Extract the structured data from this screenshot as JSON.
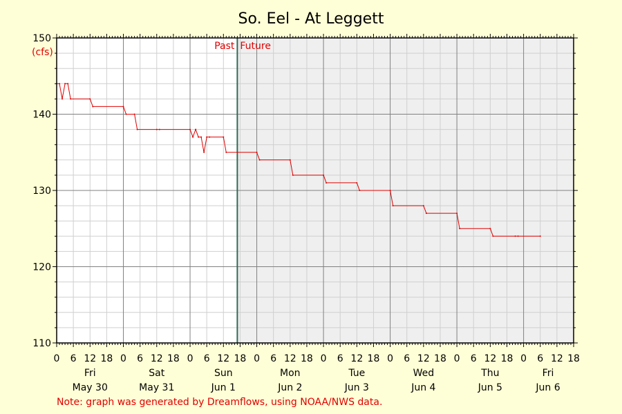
{
  "chart_data": {
    "type": "line",
    "title": "So. Eel - At Leggett",
    "ylabel": "(cfs)",
    "ylim": [
      110,
      150
    ],
    "y_ticks": [
      110,
      120,
      130,
      140,
      150
    ],
    "x_hour_tick_labels": [
      "0",
      "6",
      "12",
      "18",
      "0",
      "6",
      "12",
      "18",
      "0",
      "6",
      "12",
      "18",
      "0",
      "6",
      "12",
      "18",
      "0",
      "6",
      "12",
      "18",
      "0",
      "6",
      "12",
      "18",
      "0",
      "6",
      "12",
      "18",
      "0",
      "6",
      "12",
      "18"
    ],
    "days": [
      {
        "day": "Fri",
        "date": "May 30"
      },
      {
        "day": "Sat",
        "date": "May 31"
      },
      {
        "day": "Sun",
        "date": "Jun 1"
      },
      {
        "day": "Mon",
        "date": "Jun 2"
      },
      {
        "day": "Tue",
        "date": "Jun 3"
      },
      {
        "day": "Wed",
        "date": "Jun 4"
      },
      {
        "day": "Thu",
        "date": "Jun 5"
      },
      {
        "day": "Fri",
        "date": "Jun 6"
      }
    ],
    "xlim_hours": [
      0,
      186
    ],
    "now_hour": 65,
    "past_label": "Past",
    "future_label": "Future",
    "grid": true,
    "colors": {
      "background": "#ffffd7",
      "future_fill": "#efefef",
      "line": "#e00000",
      "now_line": "#2e6b55",
      "major_grid": "#808080",
      "minor_grid": "#cfcfcf",
      "label_red": "#e00000"
    },
    "series": [
      {
        "x": [
          0,
          1,
          2,
          3,
          4,
          5,
          12,
          13,
          24,
          25,
          28,
          29,
          36,
          37,
          48,
          49,
          50,
          51,
          52,
          53,
          54,
          55,
          60,
          61,
          72,
          73,
          84,
          85,
          96,
          97,
          108,
          109,
          120,
          121,
          132,
          133,
          144,
          145,
          156,
          157,
          165,
          166,
          174
        ],
        "y": [
          144,
          144,
          142,
          144,
          144,
          142,
          142,
          141,
          141,
          140,
          140,
          138,
          138,
          138,
          138,
          137,
          138,
          137,
          137,
          135,
          137,
          137,
          137,
          135,
          135,
          134,
          134,
          132,
          132,
          131,
          131,
          130,
          130,
          128,
          128,
          127,
          127,
          125,
          125,
          124,
          124,
          124,
          124
        ]
      }
    ]
  },
  "footer": {
    "note": "Note: graph was generated by Dreamflows, using NOAA/NWS data."
  }
}
